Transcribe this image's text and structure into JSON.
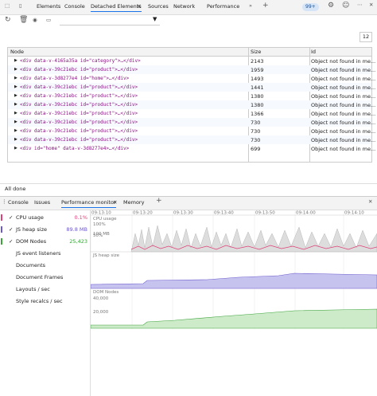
{
  "top_tabs": [
    "Elements",
    "Console",
    "Detached Elements",
    "Sources",
    "Network",
    "Performance"
  ],
  "badge": "99+",
  "count": "12",
  "table": {
    "headers": [
      "Node",
      "Size",
      "Id"
    ],
    "rows": [
      [
        "<div data-v-4165a35a id=\"category\">…</div>",
        2143,
        "Object not found in me..."
      ],
      [
        "<div data-v-39c21ebc id=\"product\">…</div>",
        1959,
        "Object not found in me..."
      ],
      [
        "<div data-v-3d8277e4 id=\"home\">…</div>",
        1493,
        "Object not found in me..."
      ],
      [
        "<div data-v-39c21ebc id=\"product\">…</div>",
        1441,
        "Object not found in me..."
      ],
      [
        "<div data-v-39c21ebc id=\"product\">…</div>",
        1380,
        "Object not found in me..."
      ],
      [
        "<div data-v-39c21ebc id=\"product\">…</div>",
        1380,
        "Object not found in me..."
      ],
      [
        "<div data-v-39c21ebc id=\"product\">…</div>",
        1366,
        "Object not found in me..."
      ],
      [
        "<div data-v-39c21ebc id=\"product\">…</div>",
        730,
        "Object not found in me..."
      ],
      [
        "<div data-v-39c21ebc id=\"product\">…</div>",
        730,
        "Object not found in me..."
      ],
      [
        "<div data-v-39c21ebc id=\"product\">…</div>",
        730,
        "Object not found in me..."
      ],
      [
        "<div id=\"home\" data-v-3d8277e4>…</div>",
        699,
        "Object not found in me..."
      ]
    ]
  },
  "status": "All done",
  "drawer_tabs": [
    "Console",
    "Issues",
    "Performance monitor",
    "Memory"
  ],
  "metrics": [
    {
      "label": "CPU usage",
      "value": "0.1%",
      "color": "#e0407a",
      "checked": true
    },
    {
      "label": "JS heap size",
      "value": "89.8 MB",
      "color": "#6a5acd",
      "checked": true
    },
    {
      "label": "DOM Nodes",
      "value": "25,423",
      "color": "#3aa33a",
      "checked": true
    },
    {
      "label": "JS event listeners",
      "checked": false
    },
    {
      "label": "Documents",
      "checked": false
    },
    {
      "label": "Document Frames",
      "checked": false
    },
    {
      "label": "Layouts / sec",
      "checked": false
    },
    {
      "label": "Style recalcs / sec",
      "checked": false
    }
  ],
  "times": [
    "09:13:10",
    "09:13:20",
    "09:13:30",
    "09:13:40",
    "09:13:50",
    "09:14:00",
    "09:14:10"
  ],
  "charts": [
    {
      "title": "CPU usage",
      "labels": [
        "100%",
        "50%"
      ]
    },
    {
      "title": "JS heap size",
      "labels": [
        "100 MB"
      ]
    },
    {
      "title": "DOM Nodes",
      "labels": [
        "40,000",
        "20,000"
      ]
    }
  ]
}
